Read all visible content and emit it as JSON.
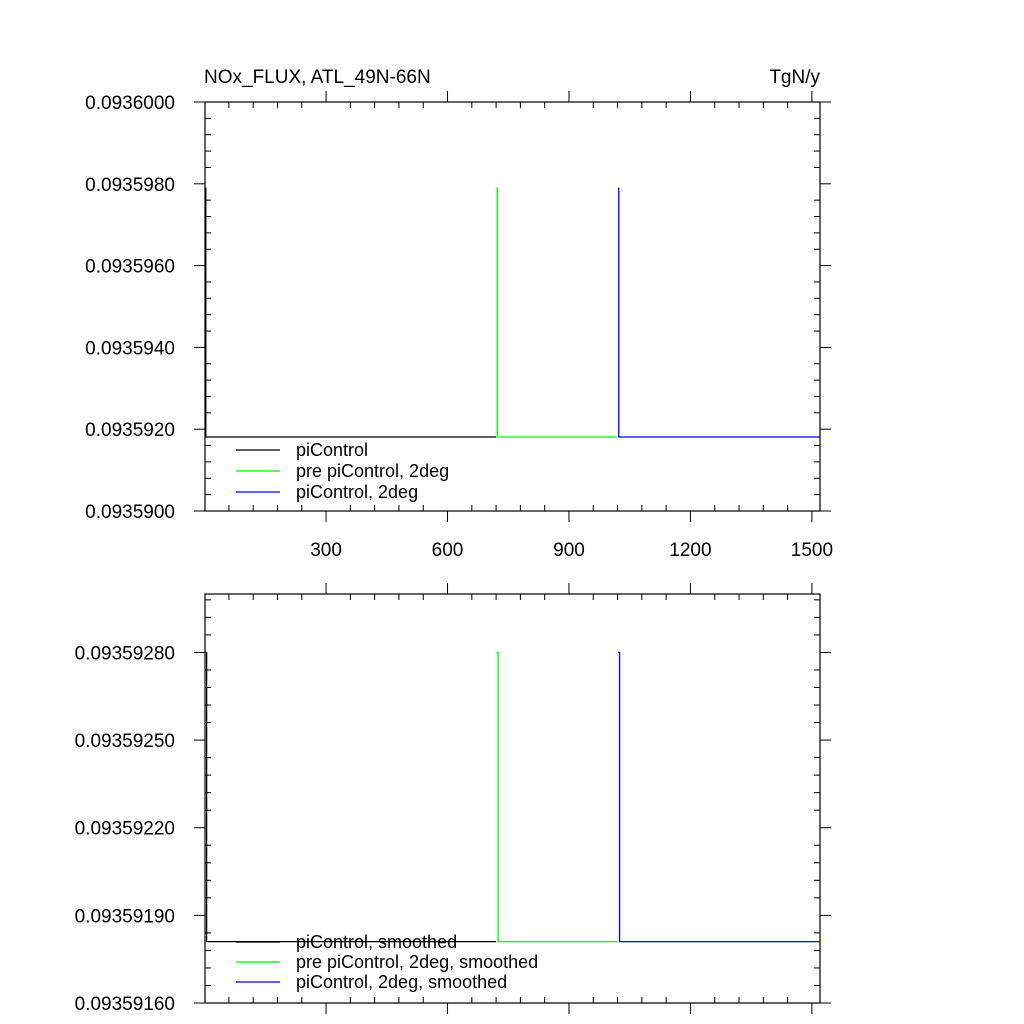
{
  "chart_data": [
    {
      "type": "line",
      "title": "NOx_FLUX, ATL_49N-66N",
      "units": "TgN/y",
      "xlabel": "",
      "ylabel": "",
      "xlim": [
        1,
        1520
      ],
      "ylim": [
        0.09359,
        0.0936
      ],
      "xticks": [
        300,
        600,
        900,
        1200,
        1500
      ],
      "xtick_labels": [
        "300",
        "600",
        "900",
        "1200",
        "1500"
      ],
      "yticks": [
        0.09359,
        0.093592,
        0.093594,
        0.093596,
        0.093598,
        0.0936
      ],
      "ytick_labels": [
        "0.0935900",
        "0.0935920",
        "0.0935940",
        "0.0935960",
        "0.0935980",
        "0.0936000"
      ],
      "grid": false,
      "legend_position": "bottom-left",
      "series": [
        {
          "name": "piControl",
          "color": "#000000",
          "x": [
            1,
            1,
            3,
            3,
            720
          ],
          "y": [
            0.09359789,
            0.09359789,
            0.09359789,
            0.09359181,
            0.09359181
          ]
        },
        {
          "name": "pre piControl, 2deg",
          "color": "#00ff00",
          "x": [
            721,
            721,
            723,
            723,
            1020
          ],
          "y": [
            0.09359789,
            0.09359789,
            0.09359789,
            0.09359181,
            0.09359181
          ]
        },
        {
          "name": "piControl, 2deg",
          "color": "#0000ff",
          "x": [
            1021,
            1021,
            1023,
            1023,
            1520
          ],
          "y": [
            0.09359789,
            0.09359789,
            0.09359789,
            0.09359181,
            0.09359181
          ]
        }
      ]
    },
    {
      "type": "line",
      "title": "",
      "xlabel": "",
      "ylabel": "",
      "xlim": [
        1,
        1520
      ],
      "ylim": [
        0.0935916,
        0.093593
      ],
      "xticks": [
        300,
        600,
        900,
        1200,
        1500
      ],
      "xtick_labels": [],
      "yticks": [
        0.0935916,
        0.0935919,
        0.0935922,
        0.0935925,
        0.0935928
      ],
      "ytick_labels": [
        "0.09359160",
        "0.09359190",
        "0.09359220",
        "0.09359250",
        "0.09359280"
      ],
      "grid": false,
      "legend_position": "bottom-left",
      "series": [
        {
          "name": "piControl, smoothed",
          "color": "#000000",
          "x": [
            1,
            1,
            5,
            5,
            720
          ],
          "y": [
            0.0935928,
            0.0935928,
            0.0935928,
            0.09359181,
            0.09359181
          ]
        },
        {
          "name": "pre piControl, 2deg, smoothed",
          "color": "#00ff00",
          "x": [
            721,
            721,
            725,
            725,
            1020
          ],
          "y": [
            0.0935928,
            0.0935928,
            0.0935928,
            0.09359181,
            0.09359181
          ]
        },
        {
          "name": "piControl, 2deg, smoothed",
          "color": "#0000ff",
          "x": [
            1021,
            1021,
            1025,
            1025,
            1520
          ],
          "y": [
            0.0935928,
            0.0935928,
            0.0935928,
            0.09359181,
            0.09359181
          ]
        }
      ]
    }
  ]
}
